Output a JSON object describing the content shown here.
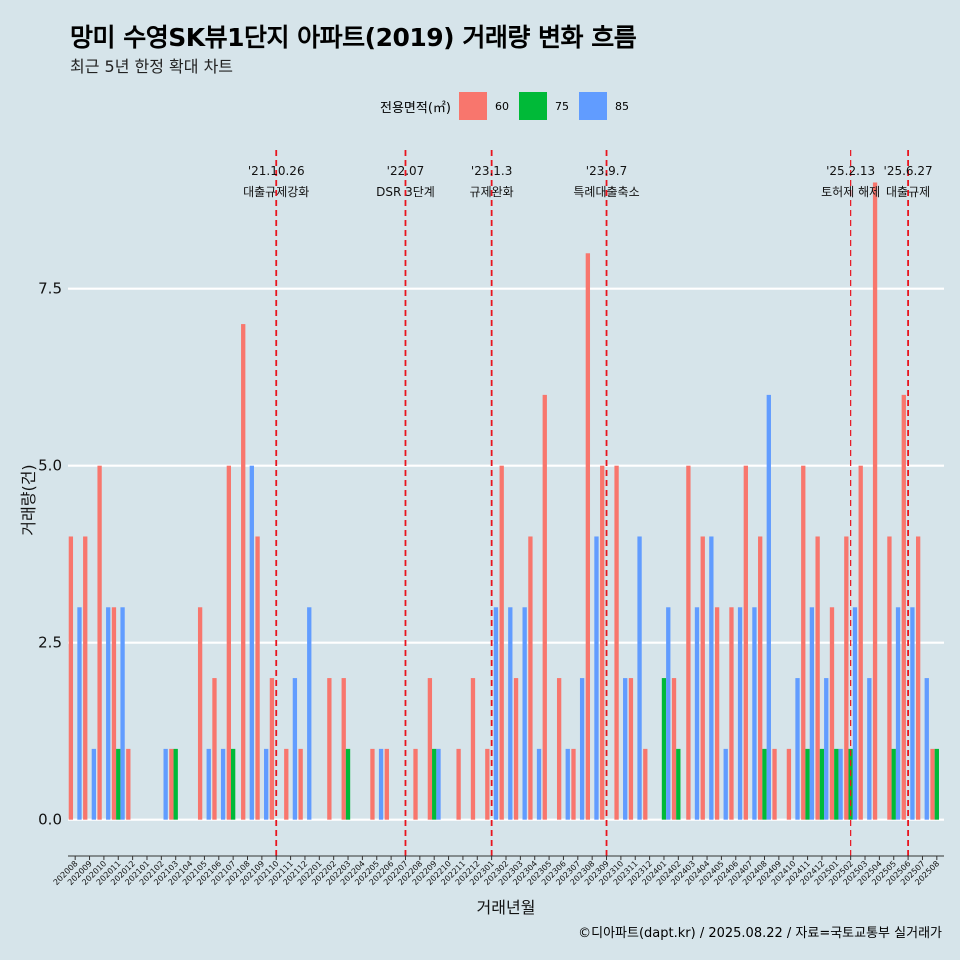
{
  "header": {
    "title": "망미 수영SK뷰1단지 아파트(2019) 거래량 변화 흐름",
    "subtitle": "최근 5년 한정 확대 차트"
  },
  "legend": {
    "title": "전용면적(㎡)",
    "items": [
      {
        "label": "60",
        "color": "#f8766d"
      },
      {
        "label": "75",
        "color": "#00ba38"
      },
      {
        "label": "85",
        "color": "#619cff"
      }
    ]
  },
  "caption": "©디아파트(dapt.kr) / 2025.08.22 / 자료=국토교통부 실거래가",
  "chart_data": {
    "type": "bar",
    "title": "망미 수영SK뷰1단지 아파트(2019) 거래량 변화 흐름",
    "xlabel": "거래년월",
    "ylabel": "거래량(건)",
    "ylim": [
      -0.4,
      9.6
    ],
    "yticks": [
      0,
      2.5,
      5,
      7.5
    ],
    "ytick_labels": [
      "0.0",
      "2.5",
      "5.0",
      "7.5"
    ],
    "grid": true,
    "legend_position": "top",
    "categories": [
      "202008",
      "202009",
      "202010",
      "202011",
      "202012",
      "202101",
      "202102",
      "202103",
      "202104",
      "202105",
      "202106",
      "202107",
      "202108",
      "202109",
      "202110",
      "202111",
      "202112",
      "202201",
      "202202",
      "202203",
      "202204",
      "202205",
      "202206",
      "202207",
      "202208",
      "202209",
      "202210",
      "202211",
      "202212",
      "202301",
      "202302",
      "202303",
      "202304",
      "202305",
      "202306",
      "202307",
      "202308",
      "202309",
      "202310",
      "202311",
      "202312",
      "202401",
      "202402",
      "202403",
      "202404",
      "202405",
      "202406",
      "202407",
      "202408",
      "202409",
      "202410",
      "202411",
      "202412",
      "202501",
      "202502",
      "202503",
      "202504",
      "202505",
      "202506",
      "202507",
      "202508"
    ],
    "series": [
      {
        "name": "60",
        "color": "#f8766d",
        "values": [
          4,
          4,
          5,
          3,
          1,
          0,
          0,
          1,
          0,
          3,
          2,
          5,
          7,
          4,
          2,
          1,
          1,
          0,
          2,
          2,
          0,
          1,
          1,
          0,
          1,
          2,
          0,
          1,
          2,
          1,
          5,
          2,
          4,
          6,
          2,
          1,
          8,
          5,
          5,
          2,
          1,
          0,
          2,
          5,
          4,
          3,
          3,
          5,
          4,
          1,
          1,
          5,
          4,
          3,
          4,
          5,
          9,
          4,
          6,
          4,
          1
        ]
      },
      {
        "name": "75",
        "color": "#00ba38",
        "values": [
          0,
          0,
          0,
          1,
          0,
          0,
          0,
          1,
          0,
          0,
          0,
          1,
          0,
          0,
          0,
          0,
          0,
          0,
          0,
          1,
          0,
          0,
          0,
          0,
          0,
          1,
          0,
          0,
          0,
          0,
          0,
          0,
          0,
          0,
          0,
          0,
          0,
          0,
          0,
          0,
          0,
          2,
          1,
          0,
          0,
          0,
          0,
          0,
          1,
          0,
          0,
          1,
          1,
          1,
          1,
          0,
          0,
          1,
          0,
          0,
          1
        ]
      },
      {
        "name": "85",
        "color": "#619cff",
        "values": [
          3,
          1,
          3,
          3,
          0,
          0,
          1,
          0,
          0,
          1,
          1,
          0,
          5,
          1,
          0,
          2,
          3,
          0,
          0,
          0,
          0,
          1,
          0,
          0,
          0,
          1,
          0,
          0,
          0,
          3,
          3,
          3,
          1,
          0,
          1,
          2,
          4,
          0,
          2,
          4,
          0,
          3,
          0,
          3,
          4,
          1,
          3,
          3,
          6,
          0,
          2,
          3,
          2,
          1,
          3,
          2,
          0,
          3,
          3,
          2,
          0
        ]
      }
    ],
    "events": [
      {
        "date": "'21.10.26",
        "label": "대출규제강화",
        "at": "202110"
      },
      {
        "date": "'22.07",
        "label": "DSR 3단계",
        "at": "202207"
      },
      {
        "date": "'23.1.3",
        "label": "규제완화",
        "at": "202301"
      },
      {
        "date": "'23.9.7",
        "label": "특례대출축소",
        "at": "202309"
      },
      {
        "date": "'25.2.13",
        "label": "토허제 해제",
        "at": "202502"
      },
      {
        "date": "'25.6.27",
        "label": "대출규제",
        "at": "202506"
      }
    ]
  }
}
